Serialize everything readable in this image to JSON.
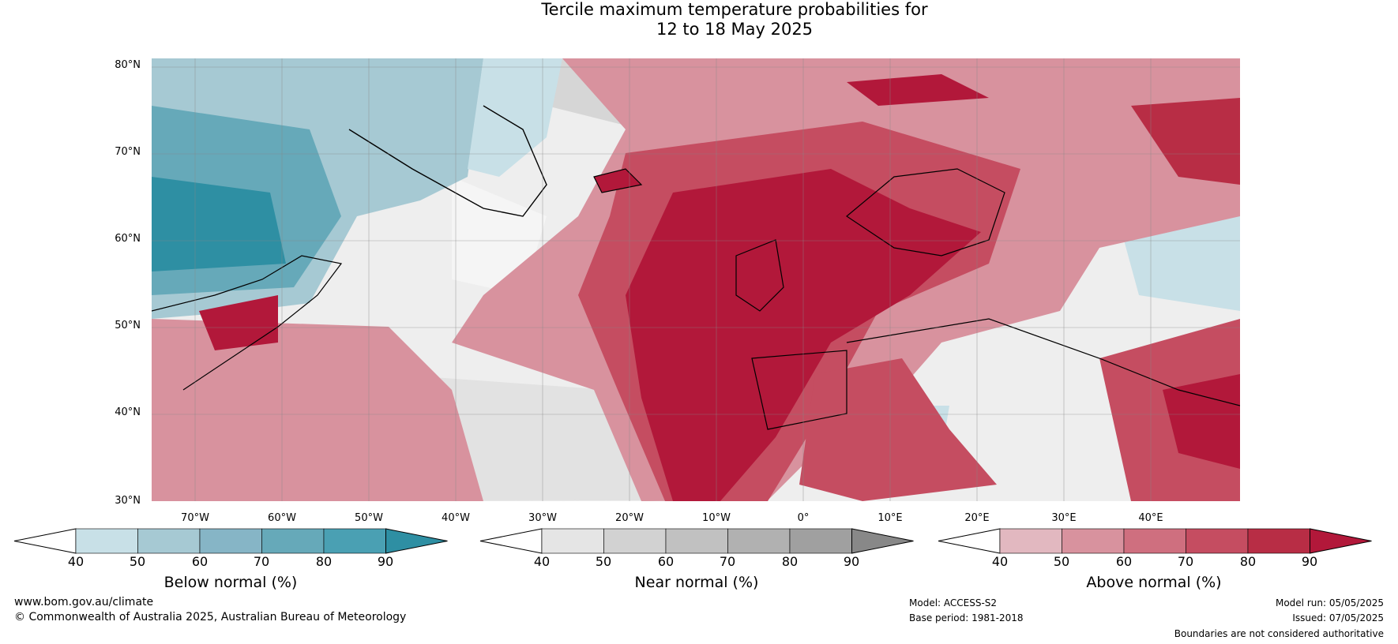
{
  "title": {
    "line1": "Tercile maximum temperature probabilities for",
    "line2": "12 to 18 May 2025"
  },
  "map": {
    "latitude_labels": [
      "80°N",
      "70°N",
      "60°N",
      "50°N",
      "40°N",
      "30°N"
    ],
    "longitude_labels": [
      "70°W",
      "60°W",
      "50°W",
      "40°W",
      "30°W",
      "20°W",
      "10°W",
      "0°",
      "10°E",
      "20°E",
      "30°E",
      "40°E"
    ]
  },
  "colorbars": [
    {
      "name": "below-normal",
      "label": "Below normal (%)",
      "ticks": [
        "40",
        "50",
        "60",
        "70",
        "80",
        "90"
      ],
      "colors": [
        "#ffffff",
        "#c8e0e7",
        "#a6c9d3",
        "#86b5c6",
        "#66a9b9",
        "#4aa0b3",
        "#2e8fa3"
      ]
    },
    {
      "name": "near-normal",
      "label": "Near normal (%)",
      "ticks": [
        "40",
        "50",
        "60",
        "70",
        "80",
        "90"
      ],
      "colors": [
        "#ffffff",
        "#e5e5e5",
        "#d2d2d2",
        "#c1c1c1",
        "#b1b1b1",
        "#a0a0a0",
        "#888888"
      ]
    },
    {
      "name": "above-normal",
      "label": "Above normal (%)",
      "ticks": [
        "40",
        "50",
        "60",
        "70",
        "80",
        "90"
      ],
      "colors": [
        "#ffffff",
        "#e2b8c0",
        "#d8929e",
        "#cf6f7f",
        "#c54d61",
        "#b82d45",
        "#b2183a"
      ]
    }
  ],
  "footer": {
    "website": "www.bom.gov.au/climate",
    "copyright": "© Commonwealth of Australia 2025, Australian Bureau of Meteorology",
    "model": "Model: ACCESS-S2",
    "base_period": "Base period: 1981-2018",
    "model_run": "Model run: 05/05/2025",
    "issued": "Issued: 07/05/2025",
    "disclaimer": "Boundaries are not considered authoritative"
  }
}
